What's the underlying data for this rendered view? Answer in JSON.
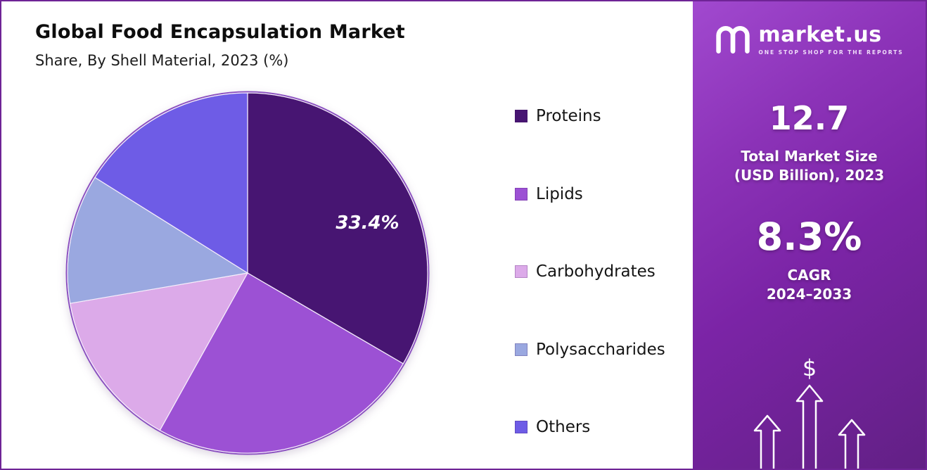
{
  "chart_data": {
    "type": "pie",
    "title": "Global Food Encapsulation Market",
    "subtitle": "Share, By Shell Material, 2023 (%)",
    "units": "%",
    "year": "2023",
    "categories": [
      "Proteins",
      "Lipids",
      "Carbohydrates",
      "Polysaccharides",
      "Others"
    ],
    "values": [
      33.4,
      24.7,
      14.2,
      11.6,
      16.1
    ],
    "value_labels": [
      "33.4%",
      "",
      "",
      "",
      ""
    ],
    "colors": [
      "#471572",
      "#9c51d4",
      "#dcaae9",
      "#9aa8e0",
      "#6e5ce6"
    ],
    "start_angle_deg": 0,
    "direction": "clockwise",
    "legend_position": "right"
  },
  "sidebar": {
    "brand": {
      "name": "market.us",
      "tagline": "ONE STOP SHOP FOR THE REPORTS"
    },
    "market_size": {
      "value": "12.7",
      "line1": "Total Market Size",
      "line2": "(USD Billion), 2023"
    },
    "cagr": {
      "value": "8.3%",
      "line1": "CAGR",
      "line2": "2024–2033"
    },
    "currency_symbol": "$"
  }
}
